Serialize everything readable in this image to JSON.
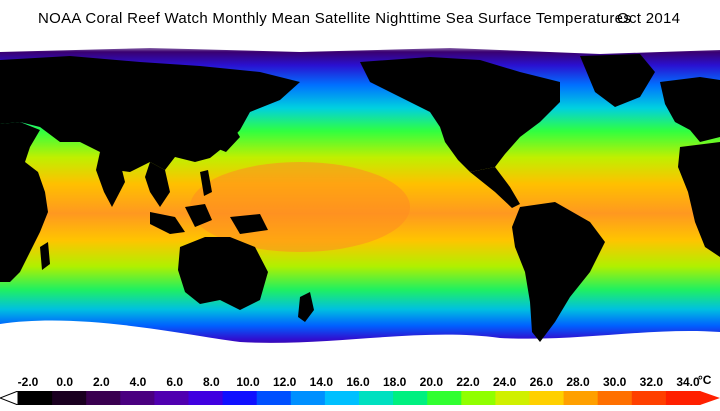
{
  "title": "NOAA Coral Reef Watch Monthly Mean Satellite Nighttime Sea Surface Temperatures",
  "date": "Oct 2014",
  "legend": {
    "unit": "°C",
    "ticks": [
      "-2.0",
      "0.0",
      "2.0",
      "4.0",
      "6.0",
      "8.0",
      "10.0",
      "12.0",
      "14.0",
      "16.0",
      "18.0",
      "20.0",
      "22.0",
      "24.0",
      "26.0",
      "28.0",
      "30.0",
      "32.0",
      "34.0"
    ],
    "colors": [
      "#000000",
      "#1a0020",
      "#3a0050",
      "#4a0080",
      "#5000b0",
      "#4000e0",
      "#1010ff",
      "#0050ff",
      "#0090ff",
      "#00c0ff",
      "#00e0c0",
      "#00f080",
      "#30ff30",
      "#90ff00",
      "#d0f000",
      "#ffd000",
      "#ffa000",
      "#ff7000",
      "#ff4000",
      "#ff2000"
    ]
  },
  "map": {
    "land_color": "#000000",
    "ice_color": "#ffffff"
  }
}
